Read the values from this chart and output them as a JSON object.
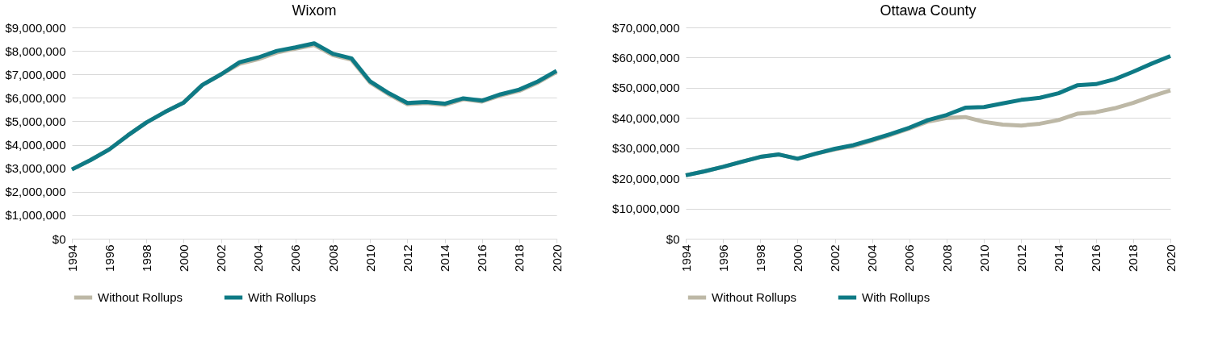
{
  "chart_data": [
    {
      "type": "line",
      "title": "Wixom",
      "x": [
        1994,
        1995,
        1996,
        1997,
        1998,
        1999,
        2000,
        2001,
        2002,
        2003,
        2004,
        2005,
        2006,
        2007,
        2008,
        2009,
        2010,
        2011,
        2012,
        2013,
        2014,
        2015,
        2016,
        2017,
        2018,
        2019,
        2020
      ],
      "series": [
        {
          "name": "Without Rollups",
          "color": "#bdb8a6",
          "values": [
            2950000,
            3350000,
            3800000,
            4400000,
            4950000,
            5400000,
            5800000,
            6550000,
            7000000,
            7450000,
            7650000,
            7930000,
            8100000,
            8250000,
            7820000,
            7620000,
            6650000,
            6150000,
            5730000,
            5780000,
            5700000,
            5940000,
            5840000,
            6100000,
            6300000,
            6650000,
            7100000
          ]
        },
        {
          "name": "With Rollups",
          "color": "#0e7a85",
          "values": [
            2950000,
            3350000,
            3800000,
            4400000,
            4950000,
            5400000,
            5800000,
            6550000,
            7000000,
            7520000,
            7720000,
            8000000,
            8150000,
            8320000,
            7880000,
            7680000,
            6700000,
            6200000,
            5780000,
            5820000,
            5750000,
            5980000,
            5880000,
            6150000,
            6350000,
            6700000,
            7150000
          ]
        }
      ],
      "xlim": [
        1994,
        2020
      ],
      "xticks": [
        1994,
        1996,
        1998,
        2000,
        2002,
        2004,
        2006,
        2008,
        2010,
        2012,
        2014,
        2016,
        2018,
        2020
      ],
      "ylim": [
        0,
        9000000
      ],
      "yticks": [
        {
          "value": 0,
          "label": "$0"
        },
        {
          "value": 1000000,
          "label": "$1,000,000"
        },
        {
          "value": 2000000,
          "label": "$2,000,000"
        },
        {
          "value": 3000000,
          "label": "$3,000,000"
        },
        {
          "value": 4000000,
          "label": "$4,000,000"
        },
        {
          "value": 5000000,
          "label": "$5,000,000"
        },
        {
          "value": 6000000,
          "label": "$6,000,000"
        },
        {
          "value": 7000000,
          "label": "$7,000,000"
        },
        {
          "value": 8000000,
          "label": "$8,000,000"
        },
        {
          "value": 9000000,
          "label": "$9,000,000"
        }
      ],
      "grid": "y",
      "legend": "bottom",
      "marker": "none",
      "line_style": "solid"
    },
    {
      "type": "line",
      "title": "Ottawa County",
      "x": [
        1994,
        1995,
        1996,
        1997,
        1998,
        1999,
        2000,
        2001,
        2002,
        2003,
        2004,
        2005,
        2006,
        2007,
        2008,
        2009,
        2010,
        2011,
        2012,
        2013,
        2014,
        2015,
        2016,
        2017,
        2018,
        2019,
        2020
      ],
      "series": [
        {
          "name": "Without Rollups",
          "color": "#bdb8a6",
          "values": [
            21000000,
            22300000,
            23800000,
            25500000,
            27100000,
            27900000,
            26500000,
            28200000,
            29600000,
            30700000,
            32500000,
            34400000,
            36500000,
            38800000,
            40000000,
            40300000,
            38700000,
            37800000,
            37500000,
            38100000,
            39300000,
            41400000,
            41900000,
            43200000,
            45000000,
            47200000,
            49100000
          ]
        },
        {
          "name": "With Rollups",
          "color": "#0e7a85",
          "values": [
            21000000,
            22300000,
            23800000,
            25500000,
            27100000,
            27900000,
            26500000,
            28200000,
            29800000,
            31000000,
            32800000,
            34700000,
            36800000,
            39300000,
            41000000,
            43400000,
            43600000,
            44800000,
            46000000,
            46700000,
            48200000,
            50800000,
            51200000,
            52800000,
            55300000,
            58000000,
            60500000
          ]
        }
      ],
      "xlim": [
        1994,
        2020
      ],
      "xticks": [
        1994,
        1996,
        1998,
        2000,
        2002,
        2004,
        2006,
        2008,
        2010,
        2012,
        2014,
        2016,
        2018,
        2020
      ],
      "ylim": [
        0,
        70000000
      ],
      "yticks": [
        {
          "value": 0,
          "label": "$0"
        },
        {
          "value": 10000000,
          "label": "$10,000,000"
        },
        {
          "value": 20000000,
          "label": "$20,000,000"
        },
        {
          "value": 30000000,
          "label": "$30,000,000"
        },
        {
          "value": 40000000,
          "label": "$40,000,000"
        },
        {
          "value": 50000000,
          "label": "$50,000,000"
        },
        {
          "value": 60000000,
          "label": "$60,000,000"
        },
        {
          "value": 70000000,
          "label": "$70,000,000"
        }
      ],
      "grid": "y",
      "legend": "bottom",
      "marker": "none",
      "line_style": "solid"
    }
  ]
}
